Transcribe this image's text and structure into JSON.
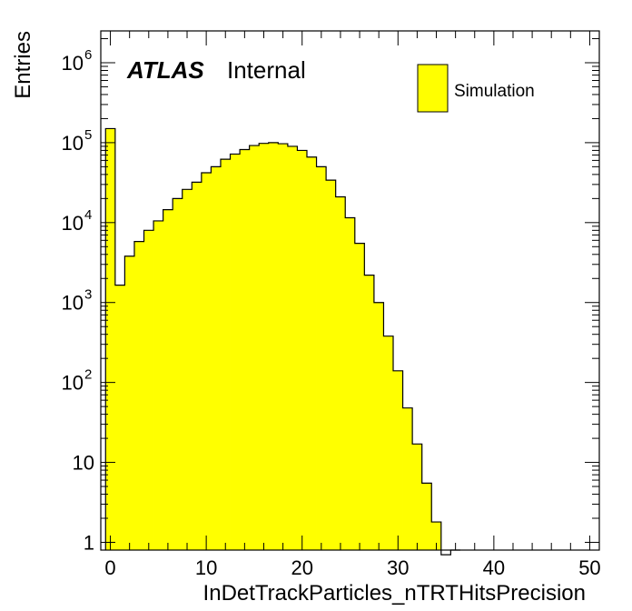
{
  "chart_data": {
    "type": "bar",
    "style": "step-histogram",
    "x": [
      0,
      1,
      2,
      3,
      4,
      5,
      6,
      7,
      8,
      9,
      10,
      11,
      12,
      13,
      14,
      15,
      16,
      17,
      18,
      19,
      20,
      21,
      22,
      23,
      24,
      25,
      26,
      27,
      28,
      29,
      30,
      31,
      32,
      33,
      34,
      35,
      36
    ],
    "values": [
      150000,
      1650,
      3800,
      5800,
      8000,
      10500,
      14500,
      20000,
      26000,
      32000,
      42000,
      50000,
      62000,
      72000,
      82000,
      92000,
      98000,
      100000,
      97000,
      90000,
      80000,
      66000,
      50000,
      34000,
      21000,
      11500,
      5500,
      2200,
      1000,
      380,
      140,
      48,
      17,
      5.5,
      1.8,
      0.7,
      0
    ],
    "xlabel": "InDetTrackParticles_nTRTHitsPrecision",
    "ylabel": "Entries",
    "xlim": [
      -1,
      51
    ],
    "ylim": [
      0.8,
      2500000
    ],
    "ylog": true,
    "xticks": [
      0,
      10,
      20,
      30,
      40,
      50
    ],
    "xtick_labels": [
      "0",
      "10",
      "20",
      "30",
      "40",
      "50"
    ],
    "ytick_labels": [
      {
        "value": 1,
        "base": "1",
        "exp": ""
      },
      {
        "value": 10,
        "base": "10",
        "exp": ""
      },
      {
        "value": 100,
        "base": "10",
        "exp": "2"
      },
      {
        "value": 1000,
        "base": "10",
        "exp": "3"
      },
      {
        "value": 10000,
        "base": "10",
        "exp": "4"
      },
      {
        "value": 100000,
        "base": "10",
        "exp": "5"
      },
      {
        "value": 1000000,
        "base": "10",
        "exp": "6"
      }
    ],
    "fill_color": "#ffff00",
    "line_color": "#000000",
    "grid": false,
    "legend": {
      "position": "top-right",
      "entries": [
        {
          "name": "Simulation",
          "color": "#ffff00"
        }
      ]
    },
    "label_atlas": "ATLAS",
    "label_status": "Internal"
  }
}
